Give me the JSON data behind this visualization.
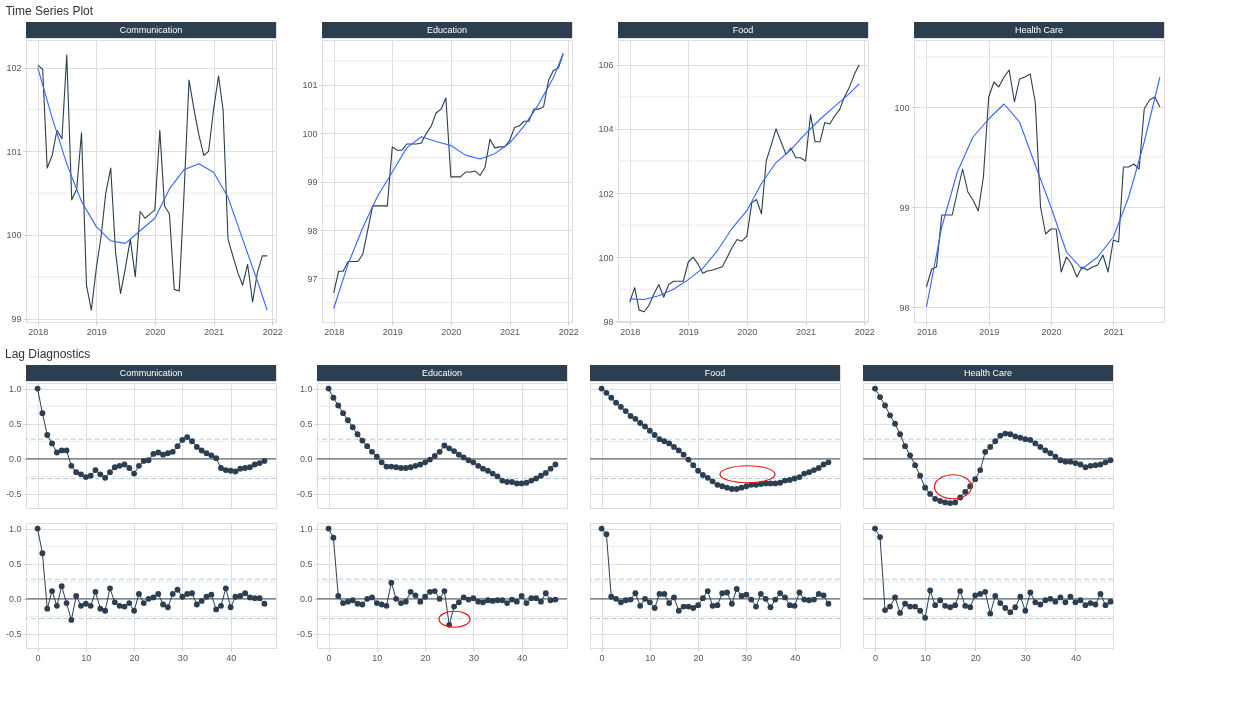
{
  "chart_data": [
    {
      "type": "line",
      "title": "Time Series Plot",
      "subtitle": "Communication",
      "grid": true,
      "x": [
        "2018-01",
        "2018-02",
        "2018-03",
        "2018-04",
        "2018-05",
        "2018-06",
        "2018-07",
        "2018-08",
        "2018-09",
        "2018-10",
        "2018-11",
        "2018-12",
        "2019-01",
        "2019-02",
        "2019-03",
        "2019-04",
        "2019-05",
        "2019-06",
        "2019-07",
        "2019-08",
        "2019-09",
        "2019-10",
        "2019-11",
        "2019-12",
        "2020-01",
        "2020-02",
        "2020-03",
        "2020-04",
        "2020-05",
        "2020-06",
        "2020-07",
        "2020-08",
        "2020-09",
        "2020-10",
        "2020-11",
        "2020-12",
        "2021-01",
        "2021-02",
        "2021-03",
        "2021-04",
        "2021-05",
        "2021-06",
        "2021-07",
        "2021-08",
        "2021-09",
        "2021-10",
        "2021-11",
        "2021-12"
      ],
      "xlim": [
        "2017-10-20",
        "2022-01-25"
      ],
      "xticks": [
        "2018",
        "2019",
        "2020",
        "2021",
        "2022"
      ],
      "ylim": [
        98.96,
        102.33
      ],
      "yticks": [
        99,
        {
          "value": 99.5,
          "label": null
        },
        100,
        {
          "value": 100.5,
          "label": null
        },
        101,
        {
          "value": 101.5,
          "label": null
        },
        102
      ],
      "series": [
        {
          "color": "#2c3e50",
          "values": [
            102.03,
            101.98,
            100.8,
            100.95,
            101.25,
            101.15,
            102.15,
            100.42,
            100.55,
            101.22,
            99.4,
            99.1,
            99.6,
            100.0,
            100.5,
            100.8,
            99.8,
            99.3,
            99.6,
            99.95,
            99.5,
            100.28,
            100.2,
            100.25,
            100.3,
            101.25,
            100.35,
            100.25,
            99.35,
            99.33,
            100.5,
            101.85,
            101.5,
            101.2,
            100.95,
            101.0,
            101.5,
            101.9,
            101.5,
            99.95,
            99.75,
            99.55,
            99.4,
            99.65,
            99.2,
            99.55,
            99.75,
            99.75
          ]
        },
        {
          "color": "#3366ff",
          "x": [
            "2018-01",
            "2018-04",
            "2018-07",
            "2018-10",
            "2019-01",
            "2019-04",
            "2019-07",
            "2019-10",
            "2020-01",
            "2020-04",
            "2020-07",
            "2020-10",
            "2021-01",
            "2021-04",
            "2021-07",
            "2021-10",
            "2021-12"
          ],
          "values": [
            102.0,
            101.4,
            100.85,
            100.4,
            100.1,
            99.93,
            99.9,
            100.05,
            100.2,
            100.55,
            100.78,
            100.85,
            100.75,
            100.45,
            99.95,
            99.45,
            99.1
          ]
        }
      ]
    },
    {
      "type": "line",
      "subtitle": "Education",
      "grid": true,
      "x": [
        "2018-01",
        "2018-02",
        "2018-03",
        "2018-04",
        "2018-05",
        "2018-06",
        "2018-07",
        "2018-08",
        "2018-09",
        "2018-10",
        "2018-11",
        "2018-12",
        "2019-01",
        "2019-02",
        "2019-03",
        "2019-04",
        "2019-05",
        "2019-06",
        "2019-07",
        "2019-08",
        "2019-09",
        "2019-10",
        "2019-11",
        "2019-12",
        "2020-01",
        "2020-02",
        "2020-03",
        "2020-04",
        "2020-05",
        "2020-06",
        "2020-07",
        "2020-08",
        "2020-09",
        "2020-10",
        "2020-11",
        "2020-12",
        "2021-01",
        "2021-02",
        "2021-03",
        "2021-04",
        "2021-05",
        "2021-06",
        "2021-07",
        "2021-08",
        "2021-09",
        "2021-10",
        "2021-11",
        "2021-12"
      ],
      "xlim": [
        "2017-10-20",
        "2022-01-25"
      ],
      "xticks": [
        "2018",
        "2019",
        "2020",
        "2021",
        "2022"
      ],
      "ylim": [
        96.1,
        101.93
      ],
      "yticks": [
        {
          "value": 96.5,
          "label": null
        },
        97,
        {
          "value": 97.5,
          "label": null
        },
        98,
        {
          "value": 98.5,
          "label": null
        },
        99,
        {
          "value": 99.5,
          "label": null
        },
        100,
        {
          "value": 100.5,
          "label": null
        },
        101,
        {
          "value": 101.5,
          "label": null
        }
      ],
      "series": [
        {
          "color": "#2c3e50",
          "values": [
            96.7,
            97.15,
            97.15,
            97.35,
            97.35,
            97.35,
            97.5,
            98.0,
            98.5,
            98.5,
            98.5,
            98.5,
            99.72,
            99.65,
            99.65,
            99.78,
            99.78,
            99.78,
            99.8,
            100.0,
            100.15,
            100.42,
            100.5,
            100.73,
            99.1,
            99.1,
            99.1,
            99.2,
            99.2,
            99.22,
            99.13,
            99.3,
            99.88,
            99.7,
            99.72,
            99.72,
            99.85,
            100.12,
            100.15,
            100.25,
            100.25,
            100.5,
            100.5,
            100.55,
            101.1,
            101.3,
            101.35,
            101.65
          ]
        },
        {
          "color": "#3366ff",
          "x": [
            "2018-01",
            "2018-04",
            "2018-07",
            "2018-10",
            "2019-01",
            "2019-04",
            "2019-07",
            "2019-10",
            "2020-01",
            "2020-04",
            "2020-07",
            "2020-10",
            "2021-01",
            "2021-04",
            "2021-07",
            "2021-10",
            "2021-12"
          ],
          "values": [
            96.38,
            97.3,
            98.05,
            98.7,
            99.2,
            99.7,
            99.93,
            99.83,
            99.75,
            99.55,
            99.47,
            99.58,
            99.8,
            100.15,
            100.6,
            101.15,
            101.65
          ]
        }
      ]
    },
    {
      "type": "line",
      "subtitle": "Food",
      "grid": true,
      "x": [
        "2018-01",
        "2018-02",
        "2018-03",
        "2018-04",
        "2018-05",
        "2018-06",
        "2018-07",
        "2018-08",
        "2018-09",
        "2018-10",
        "2018-11",
        "2018-12",
        "2019-01",
        "2019-02",
        "2019-03",
        "2019-04",
        "2019-05",
        "2019-06",
        "2019-07",
        "2019-08",
        "2019-09",
        "2019-10",
        "2019-11",
        "2019-12",
        "2020-01",
        "2020-02",
        "2020-03",
        "2020-04",
        "2020-05",
        "2020-06",
        "2020-07",
        "2020-08",
        "2020-09",
        "2020-10",
        "2020-11",
        "2020-12",
        "2021-01",
        "2021-02",
        "2021-03",
        "2021-04",
        "2021-05",
        "2021-06",
        "2021-07",
        "2021-08",
        "2021-09",
        "2021-10",
        "2021-11",
        "2021-12"
      ],
      "xlim": [
        "2017-10-20",
        "2022-01-25"
      ],
      "xticks": [
        "2018",
        "2019",
        "2020",
        "2021",
        "2022"
      ],
      "ylim": [
        97.98,
        106.77
      ],
      "yticks": [
        98,
        {
          "value": 99,
          "label": null
        },
        100,
        {
          "value": 101,
          "label": null
        },
        102,
        {
          "value": 103,
          "label": null
        },
        104,
        {
          "value": 105,
          "label": null
        },
        106
      ],
      "series": [
        {
          "color": "#2c3e50",
          "values": [
            98.6,
            99.05,
            98.35,
            98.3,
            98.5,
            98.85,
            99.15,
            98.75,
            99.15,
            99.25,
            99.25,
            99.25,
            99.85,
            100.0,
            99.8,
            99.5,
            99.57,
            99.6,
            99.65,
            99.7,
            100.0,
            100.3,
            100.55,
            100.5,
            100.65,
            101.7,
            101.8,
            101.35,
            103.0,
            103.5,
            104.0,
            103.6,
            103.2,
            103.4,
            103.1,
            103.1,
            103.0,
            104.45,
            103.6,
            103.6,
            104.2,
            104.15,
            104.4,
            104.6,
            105.0,
            105.3,
            105.7,
            106.0
          ]
        },
        {
          "color": "#3366ff",
          "x": [
            "2018-01",
            "2018-04",
            "2018-07",
            "2018-10",
            "2019-01",
            "2019-04",
            "2019-07",
            "2019-10",
            "2020-01",
            "2020-04",
            "2020-07",
            "2020-10",
            "2021-01",
            "2021-04",
            "2021-07",
            "2021-10",
            "2021-12"
          ],
          "values": [
            98.7,
            98.68,
            98.8,
            99.0,
            99.3,
            99.65,
            100.2,
            100.9,
            101.45,
            102.3,
            102.95,
            103.35,
            103.85,
            104.3,
            104.7,
            105.1,
            105.4
          ]
        }
      ]
    },
    {
      "type": "line",
      "subtitle": "Health Care",
      "grid": true,
      "x": [
        "2018-01",
        "2018-02",
        "2018-03",
        "2018-04",
        "2018-05",
        "2018-06",
        "2018-07",
        "2018-08",
        "2018-09",
        "2018-10",
        "2018-11",
        "2018-12",
        "2019-01",
        "2019-02",
        "2019-03",
        "2019-04",
        "2019-05",
        "2019-06",
        "2019-07",
        "2019-08",
        "2019-09",
        "2019-10",
        "2019-11",
        "2019-12",
        "2020-01",
        "2020-02",
        "2020-03",
        "2020-04",
        "2020-05",
        "2020-06",
        "2020-07",
        "2020-08",
        "2020-09",
        "2020-10",
        "2020-11",
        "2020-12",
        "2021-01",
        "2021-02",
        "2021-03",
        "2021-04",
        "2021-05",
        "2021-06",
        "2021-07",
        "2021-08",
        "2021-09",
        "2021-10"
      ],
      "xlim": [
        "2017-10-20",
        "2021-10-25"
      ],
      "xticks": [
        "2018",
        "2019",
        "2020",
        "2021"
      ],
      "ylim": [
        97.85,
        100.67
      ],
      "yticks": [
        98,
        {
          "value": 98.5,
          "label": null
        },
        99,
        {
          "value": 99.5,
          "label": null
        },
        100,
        {
          "value": 100.5,
          "label": null
        }
      ],
      "series": [
        {
          "color": "#2c3e50",
          "values": [
            98.2,
            98.38,
            98.4,
            98.92,
            98.92,
            98.92,
            99.15,
            99.38,
            99.15,
            99.07,
            98.96,
            99.3,
            100.1,
            100.25,
            100.2,
            100.3,
            100.37,
            100.05,
            100.28,
            100.3,
            100.33,
            100.05,
            99.0,
            98.73,
            98.78,
            98.78,
            98.35,
            98.5,
            98.43,
            98.3,
            98.4,
            98.37,
            98.4,
            98.42,
            98.52,
            98.35,
            98.67,
            98.65,
            99.4,
            99.4,
            99.43,
            99.38,
            99.98,
            100.07,
            100.1,
            100.0
          ]
        },
        {
          "color": "#3366ff",
          "x": [
            "2018-01",
            "2018-04",
            "2018-07",
            "2018-10",
            "2019-01",
            "2019-04",
            "2019-07",
            "2019-10",
            "2020-01",
            "2020-04",
            "2020-07",
            "2020-10",
            "2021-01",
            "2021-04",
            "2021-07",
            "2021-10"
          ],
          "values": [
            98.0,
            98.8,
            99.35,
            99.7,
            99.88,
            100.03,
            99.85,
            99.42,
            99.0,
            98.55,
            98.38,
            98.5,
            98.7,
            99.1,
            99.65,
            100.3
          ]
        }
      ]
    },
    {
      "type": "line",
      "title": "Lag Diagnostics",
      "subtitle": "Communication",
      "grid": true,
      "marker": "circle",
      "tick_labels": "y",
      "x": [
        0,
        1,
        2,
        3,
        4,
        5,
        6,
        7,
        8,
        9,
        10,
        11,
        12,
        13,
        14,
        15,
        16,
        17,
        18,
        19,
        20,
        21,
        22,
        23,
        24,
        25,
        26,
        27,
        28,
        29,
        30,
        31,
        32,
        33,
        34,
        35,
        36,
        37,
        38,
        39,
        40,
        41,
        42,
        43,
        44,
        45,
        46,
        47
      ],
      "xlim": [
        -2.4,
        49.4
      ],
      "xticks": [
        0,
        10,
        20,
        30,
        40
      ],
      "ylim": [
        -0.7,
        1.08
      ],
      "yticks": [
        -0.5,
        {
          "value": -0.25,
          "label": null
        },
        {
          "value": 0,
          "label": "0.0"
        },
        {
          "value": 0.25,
          "label": null
        },
        0.5,
        {
          "value": 0.75,
          "label": null
        },
        {
          "value": 1,
          "label": "1.0"
        }
      ],
      "ref_lines": [
        {
          "axis": "y",
          "value": 0,
          "color": "#2c3e50",
          "line_style": "solid"
        },
        {
          "axis": "y",
          "value": 0.28,
          "color": "#a6cee3",
          "line_style": "dashed"
        },
        {
          "axis": "y",
          "value": -0.28,
          "color": "#a6cee3",
          "line_style": "dashed"
        }
      ],
      "series": [
        {
          "color": "#2c3e50",
          "values": [
            1.0,
            0.65,
            0.34,
            0.22,
            0.09,
            0.12,
            0.12,
            -0.1,
            -0.19,
            -0.22,
            -0.26,
            -0.24,
            -0.16,
            -0.22,
            -0.27,
            -0.19,
            -0.12,
            -0.1,
            -0.08,
            -0.13,
            -0.21,
            -0.1,
            -0.03,
            -0.02,
            0.07,
            0.09,
            0.06,
            0.08,
            0.1,
            0.18,
            0.27,
            0.31,
            0.25,
            0.17,
            0.12,
            0.08,
            0.05,
            0.01,
            -0.13,
            -0.16,
            -0.17,
            -0.18,
            -0.14,
            -0.13,
            -0.12,
            -0.08,
            -0.06,
            -0.03
          ]
        }
      ]
    },
    {
      "type": "line",
      "subtitle": "Education",
      "grid": true,
      "marker": "circle",
      "tick_labels": "y",
      "x": [
        0,
        1,
        2,
        3,
        4,
        5,
        6,
        7,
        8,
        9,
        10,
        11,
        12,
        13,
        14,
        15,
        16,
        17,
        18,
        19,
        20,
        21,
        22,
        23,
        24,
        25,
        26,
        27,
        28,
        29,
        30,
        31,
        32,
        33,
        34,
        35,
        36,
        37,
        38,
        39,
        40,
        41,
        42,
        43,
        44,
        45,
        46,
        47
      ],
      "xlim": [
        -2.4,
        49.4
      ],
      "xticks": [
        0,
        10,
        20,
        30,
        40
      ],
      "ylim": [
        -0.7,
        1.08
      ],
      "yticks": [
        -0.5,
        {
          "value": -0.25,
          "label": null
        },
        {
          "value": 0,
          "label": "0.0"
        },
        {
          "value": 0.25,
          "label": null
        },
        0.5,
        {
          "value": 0.75,
          "label": null
        },
        {
          "value": 1,
          "label": "1.0"
        }
      ],
      "ref_lines": [
        {
          "axis": "y",
          "value": 0,
          "color": "#2c3e50",
          "line_style": "solid"
        },
        {
          "axis": "y",
          "value": 0.28,
          "color": "#a6cee3",
          "line_style": "dashed"
        },
        {
          "axis": "y",
          "value": -0.28,
          "color": "#a6cee3",
          "line_style": "dashed"
        }
      ],
      "series": [
        {
          "color": "#2c3e50",
          "values": [
            1.0,
            0.87,
            0.76,
            0.65,
            0.55,
            0.45,
            0.35,
            0.26,
            0.18,
            0.1,
            0.03,
            -0.05,
            -0.11,
            -0.11,
            -0.12,
            -0.13,
            -0.13,
            -0.12,
            -0.1,
            -0.08,
            -0.05,
            -0.01,
            0.04,
            0.1,
            0.19,
            0.15,
            0.11,
            0.06,
            0.02,
            -0.02,
            -0.05,
            -0.1,
            -0.14,
            -0.17,
            -0.21,
            -0.25,
            -0.31,
            -0.33,
            -0.33,
            -0.35,
            -0.35,
            -0.34,
            -0.31,
            -0.28,
            -0.24,
            -0.2,
            -0.14,
            -0.08
          ]
        }
      ]
    },
    {
      "type": "line",
      "subtitle": "Food",
      "grid": true,
      "marker": "circle",
      "tick_labels": false,
      "x": [
        0,
        1,
        2,
        3,
        4,
        5,
        6,
        7,
        8,
        9,
        10,
        11,
        12,
        13,
        14,
        15,
        16,
        17,
        18,
        19,
        20,
        21,
        22,
        23,
        24,
        25,
        26,
        27,
        28,
        29,
        30,
        31,
        32,
        33,
        34,
        35,
        36,
        37,
        38,
        39,
        40,
        41,
        42,
        43,
        44,
        45,
        46,
        47
      ],
      "xlim": [
        -2.4,
        49.4
      ],
      "xticks": [
        0,
        10,
        20,
        30,
        40
      ],
      "ylim": [
        -0.7,
        1.08
      ],
      "yticks": [
        -0.5,
        {
          "value": -0.25,
          "label": null
        },
        0,
        {
          "value": 0.25,
          "label": null
        },
        0.5,
        {
          "value": 0.75,
          "label": null
        },
        1
      ],
      "ref_lines": [
        {
          "axis": "y",
          "value": 0,
          "color": "#2c3e50",
          "line_style": "solid"
        },
        {
          "axis": "y",
          "value": 0.28,
          "color": "#a6cee3",
          "line_style": "dashed"
        },
        {
          "axis": "y",
          "value": -0.28,
          "color": "#a6cee3",
          "line_style": "dashed"
        }
      ],
      "series": [
        {
          "color": "#2c3e50",
          "values": [
            1.0,
            0.94,
            0.87,
            0.8,
            0.74,
            0.68,
            0.61,
            0.57,
            0.51,
            0.46,
            0.4,
            0.34,
            0.28,
            0.25,
            0.22,
            0.17,
            0.12,
            0.06,
            -0.01,
            -0.09,
            -0.17,
            -0.23,
            -0.27,
            -0.32,
            -0.37,
            -0.39,
            -0.41,
            -0.43,
            -0.43,
            -0.41,
            -0.39,
            -0.37,
            -0.37,
            -0.36,
            -0.35,
            -0.35,
            -0.35,
            -0.34,
            -0.31,
            -0.3,
            -0.28,
            -0.26,
            -0.21,
            -0.19,
            -0.16,
            -0.13,
            -0.08,
            -0.05
          ]
        }
      ]
    },
    {
      "type": "line",
      "subtitle": "Health Care",
      "grid": true,
      "marker": "circle",
      "tick_labels": false,
      "x": [
        0,
        1,
        2,
        3,
        4,
        5,
        6,
        7,
        8,
        9,
        10,
        11,
        12,
        13,
        14,
        15,
        16,
        17,
        18,
        19,
        20,
        21,
        22,
        23,
        24,
        25,
        26,
        27,
        28,
        29,
        30,
        31,
        32,
        33,
        34,
        35,
        36,
        37,
        38,
        39,
        40,
        41,
        42,
        43,
        44,
        45,
        46,
        47
      ],
      "xlim": [
        -2.4,
        47.5
      ],
      "xticks": [
        0,
        10,
        20,
        30,
        40
      ],
      "ylim": [
        -0.7,
        1.08
      ],
      "yticks": [
        -0.5,
        {
          "value": -0.25,
          "label": null
        },
        0,
        {
          "value": 0.25,
          "label": null
        },
        0.5,
        {
          "value": 0.75,
          "label": null
        },
        1
      ],
      "ref_lines": [
        {
          "axis": "y",
          "value": 0,
          "color": "#2c3e50",
          "line_style": "solid"
        },
        {
          "axis": "y",
          "value": 0.28,
          "color": "#a6cee3",
          "line_style": "dashed"
        },
        {
          "axis": "y",
          "value": -0.28,
          "color": "#a6cee3",
          "line_style": "dashed"
        }
      ],
      "series": [
        {
          "color": "#2c3e50",
          "values": [
            1.0,
            0.88,
            0.76,
            0.62,
            0.5,
            0.35,
            0.18,
            0.05,
            -0.09,
            -0.24,
            -0.41,
            -0.5,
            -0.57,
            -0.6,
            -0.62,
            -0.63,
            -0.62,
            -0.55,
            -0.47,
            -0.39,
            -0.29,
            -0.16,
            0.1,
            0.17,
            0.25,
            0.33,
            0.36,
            0.35,
            0.32,
            0.3,
            0.28,
            0.27,
            0.22,
            0.17,
            0.12,
            0.08,
            0.03,
            -0.02,
            -0.04,
            -0.04,
            -0.06,
            -0.08,
            -0.12,
            -0.1,
            -0.09,
            -0.08,
            -0.05,
            -0.02
          ]
        }
      ]
    },
    {
      "type": "line",
      "grid": true,
      "marker": "circle",
      "x": [
        0,
        1,
        2,
        3,
        4,
        5,
        6,
        7,
        8,
        9,
        10,
        11,
        12,
        13,
        14,
        15,
        16,
        17,
        18,
        19,
        20,
        21,
        22,
        23,
        24,
        25,
        26,
        27,
        28,
        29,
        30,
        31,
        32,
        33,
        34,
        35,
        36,
        37,
        38,
        39,
        40,
        41,
        42,
        43,
        44,
        45,
        46,
        47
      ],
      "xlim": [
        -2.4,
        49.4
      ],
      "xticks": [
        0,
        10,
        20,
        30,
        40
      ],
      "ylim": [
        -0.7,
        1.08
      ],
      "yticks": [
        -0.5,
        {
          "value": -0.25,
          "label": null
        },
        {
          "value": 0,
          "label": "0.0"
        },
        {
          "value": 0.25,
          "label": null
        },
        0.5,
        {
          "value": 0.75,
          "label": null
        },
        {
          "value": 1,
          "label": "1.0"
        }
      ],
      "ref_lines": [
        {
          "axis": "y",
          "value": 0,
          "color": "#2c3e50",
          "line_style": "solid"
        },
        {
          "axis": "y",
          "value": 0.28,
          "color": "#a6cee3",
          "line_style": "dashed"
        },
        {
          "axis": "y",
          "value": -0.28,
          "color": "#a6cee3",
          "line_style": "dashed"
        }
      ],
      "series": [
        {
          "color": "#2c3e50",
          "values": [
            1.0,
            0.65,
            -0.14,
            0.11,
            -0.1,
            0.18,
            -0.06,
            -0.3,
            0.04,
            -0.1,
            -0.07,
            -0.1,
            0.1,
            -0.14,
            -0.17,
            0.15,
            -0.05,
            -0.1,
            -0.11,
            -0.06,
            -0.17,
            0.07,
            -0.06,
            0.0,
            0.02,
            0.07,
            -0.08,
            -0.12,
            0.07,
            0.13,
            0.03,
            0.07,
            0.08,
            -0.08,
            -0.03,
            0.03,
            0.06,
            -0.15,
            -0.1,
            0.15,
            -0.12,
            0.03,
            0.04,
            0.08,
            0.02,
            0.01,
            0.01,
            -0.07
          ]
        }
      ]
    },
    {
      "type": "line",
      "grid": true,
      "marker": "circle",
      "x": [
        0,
        1,
        2,
        3,
        4,
        5,
        6,
        7,
        8,
        9,
        10,
        11,
        12,
        13,
        14,
        15,
        16,
        17,
        18,
        19,
        20,
        21,
        22,
        23,
        24,
        25,
        26,
        27,
        28,
        29,
        30,
        31,
        32,
        33,
        34,
        35,
        36,
        37,
        38,
        39,
        40,
        41,
        42,
        43,
        44,
        45,
        46,
        47
      ],
      "xlim": [
        -2.4,
        49.4
      ],
      "xticks": [
        0,
        10,
        20,
        30,
        40
      ],
      "ylim": [
        -0.7,
        1.08
      ],
      "yticks": [
        -0.5,
        {
          "value": -0.25,
          "label": null
        },
        {
          "value": 0,
          "label": "0.0"
        },
        {
          "value": 0.25,
          "label": null
        },
        0.5,
        {
          "value": 0.75,
          "label": null
        },
        {
          "value": 1,
          "label": "1.0"
        }
      ],
      "ref_lines": [
        {
          "axis": "y",
          "value": 0,
          "color": "#2c3e50",
          "line_style": "solid"
        },
        {
          "axis": "y",
          "value": 0.28,
          "color": "#a6cee3",
          "line_style": "dashed"
        },
        {
          "axis": "y",
          "value": -0.28,
          "color": "#a6cee3",
          "line_style": "dashed"
        }
      ],
      "series": [
        {
          "color": "#2c3e50",
          "values": [
            1.0,
            0.87,
            0.04,
            -0.06,
            -0.04,
            -0.02,
            -0.07,
            -0.08,
            0.0,
            0.02,
            -0.06,
            -0.08,
            -0.1,
            0.23,
            0.0,
            -0.06,
            -0.04,
            0.1,
            0.05,
            -0.04,
            0.03,
            0.1,
            0.11,
            0.0,
            0.11,
            -0.37,
            -0.11,
            -0.05,
            0.02,
            -0.01,
            0.01,
            -0.04,
            -0.05,
            -0.02,
            -0.03,
            -0.02,
            -0.02,
            -0.06,
            -0.01,
            -0.04,
            0.04,
            -0.06,
            0.01,
            0.01,
            -0.04,
            0.08,
            -0.02,
            -0.01
          ]
        }
      ]
    },
    {
      "type": "line",
      "grid": true,
      "marker": "circle",
      "tick_labels": "x",
      "x": [
        0,
        1,
        2,
        3,
        4,
        5,
        6,
        7,
        8,
        9,
        10,
        11,
        12,
        13,
        14,
        15,
        16,
        17,
        18,
        19,
        20,
        21,
        22,
        23,
        24,
        25,
        26,
        27,
        28,
        29,
        30,
        31,
        32,
        33,
        34,
        35,
        36,
        37,
        38,
        39,
        40,
        41,
        42,
        43,
        44,
        45,
        46,
        47
      ],
      "xlim": [
        -2.4,
        49.4
      ],
      "xticks": [
        0,
        10,
        20,
        30,
        40
      ],
      "ylim": [
        -0.7,
        1.08
      ],
      "yticks": [
        -0.5,
        {
          "value": -0.25,
          "label": null
        },
        0,
        {
          "value": 0.25,
          "label": null
        },
        0.5,
        {
          "value": 0.75,
          "label": null
        },
        1
      ],
      "ref_lines": [
        {
          "axis": "y",
          "value": 0,
          "color": "#2c3e50",
          "line_style": "solid"
        },
        {
          "axis": "y",
          "value": 0.28,
          "color": "#a6cee3",
          "line_style": "dashed"
        },
        {
          "axis": "y",
          "value": -0.28,
          "color": "#a6cee3",
          "line_style": "dashed"
        }
      ],
      "series": [
        {
          "color": "#2c3e50",
          "values": [
            1.0,
            0.92,
            0.03,
            0.0,
            -0.05,
            -0.02,
            -0.01,
            0.08,
            -0.1,
            0.0,
            -0.05,
            -0.13,
            0.07,
            0.07,
            -0.06,
            0.02,
            -0.17,
            -0.11,
            -0.11,
            -0.13,
            -0.09,
            0.01,
            0.11,
            -0.1,
            -0.09,
            0.08,
            0.09,
            -0.07,
            0.14,
            0.04,
            0.06,
            -0.01,
            -0.11,
            0.07,
            0.0,
            -0.12,
            -0.01,
            0.08,
            0.02,
            -0.09,
            -0.1,
            0.09,
            -0.01,
            -0.02,
            -0.01,
            0.07,
            0.05,
            -0.07
          ]
        }
      ]
    },
    {
      "type": "line",
      "grid": true,
      "marker": "circle",
      "tick_labels": "x",
      "x": [
        0,
        1,
        2,
        3,
        4,
        5,
        6,
        7,
        8,
        9,
        10,
        11,
        12,
        13,
        14,
        15,
        16,
        17,
        18,
        19,
        20,
        21,
        22,
        23,
        24,
        25,
        26,
        27,
        28,
        29,
        30,
        31,
        32,
        33,
        34,
        35,
        36,
        37,
        38,
        39,
        40,
        41,
        42,
        43,
        44,
        45,
        46,
        47
      ],
      "xlim": [
        -2.4,
        47.5
      ],
      "xticks": [
        0,
        10,
        20,
        30,
        40
      ],
      "ylim": [
        -0.7,
        1.08
      ],
      "yticks": [
        -0.5,
        {
          "value": -0.25,
          "label": null
        },
        0,
        {
          "value": 0.25,
          "label": null
        },
        0.5,
        {
          "value": 0.75,
          "label": null
        },
        1
      ],
      "ref_lines": [
        {
          "axis": "y",
          "value": 0,
          "color": "#2c3e50",
          "line_style": "solid"
        },
        {
          "axis": "y",
          "value": 0.28,
          "color": "#a6cee3",
          "line_style": "dashed"
        },
        {
          "axis": "y",
          "value": -0.28,
          "color": "#a6cee3",
          "line_style": "dashed"
        }
      ],
      "series": [
        {
          "color": "#2c3e50",
          "values": [
            1.0,
            0.88,
            -0.16,
            -0.11,
            0.02,
            -0.2,
            -0.07,
            -0.11,
            -0.11,
            -0.17,
            -0.27,
            0.12,
            -0.09,
            -0.02,
            -0.1,
            -0.12,
            -0.09,
            0.11,
            -0.1,
            -0.12,
            0.05,
            0.07,
            0.1,
            -0.21,
            0.04,
            -0.06,
            -0.13,
            -0.19,
            -0.12,
            0.03,
            -0.17,
            0.09,
            -0.05,
            -0.08,
            -0.02,
            0.0,
            -0.04,
            0.02,
            -0.05,
            0.03,
            -0.05,
            -0.02,
            -0.09,
            -0.06,
            -0.08,
            0.07,
            -0.09,
            -0.04
          ]
        }
      ]
    }
  ]
}
